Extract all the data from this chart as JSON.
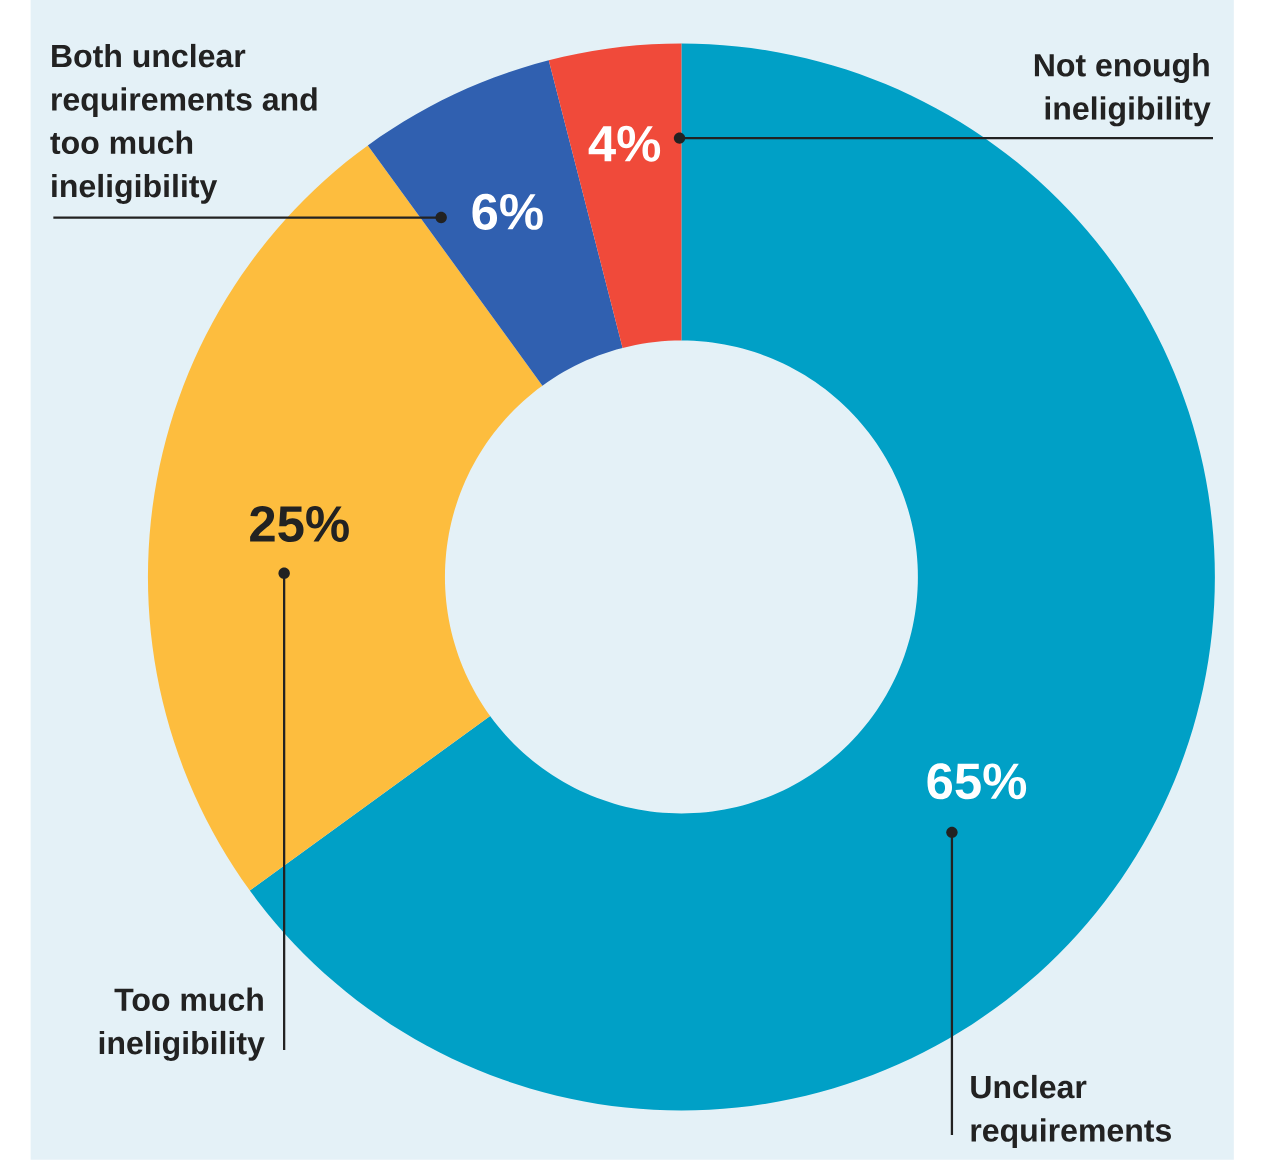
{
  "chart_data": {
    "type": "donut",
    "categories": [
      "Unclear requirements",
      "Too much ineligibility",
      "Both unclear requirements and too much ineligibility",
      "Not enough ineligibility"
    ],
    "values": [
      65,
      25,
      6,
      4
    ],
    "value_labels": [
      "65%",
      "25%",
      "6%",
      "4%"
    ],
    "colors": [
      "#00a0c6",
      "#fdbd3e",
      "#3060b0",
      "#f04a3a"
    ]
  }
}
